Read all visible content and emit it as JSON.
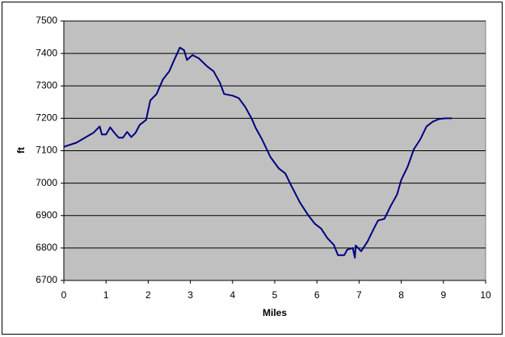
{
  "chart_data": {
    "type": "line",
    "x_label": "Miles",
    "y_label": "ft",
    "x": [
      0,
      0.3,
      0.5,
      0.7,
      0.85,
      0.9,
      1.0,
      1.1,
      1.2,
      1.3,
      1.4,
      1.5,
      1.6,
      1.7,
      1.8,
      1.95,
      2.05,
      2.2,
      2.35,
      2.5,
      2.6,
      2.75,
      2.85,
      2.92,
      3.05,
      3.2,
      3.4,
      3.55,
      3.7,
      3.8,
      4.0,
      4.15,
      4.3,
      4.45,
      4.55,
      4.7,
      4.9,
      5.1,
      5.25,
      5.4,
      5.6,
      5.8,
      5.95,
      6.1,
      6.25,
      6.4,
      6.5,
      6.65,
      6.72,
      6.85,
      6.9,
      6.92,
      7.05,
      7.2,
      7.35,
      7.45,
      7.6,
      7.75,
      7.9,
      8.0,
      8.15,
      8.3,
      8.45,
      8.6,
      8.75,
      8.9,
      9.05,
      9.2
    ],
    "series": [
      {
        "color": "#000080",
        "values": [
          7112,
          7125,
          7140,
          7155,
          7175,
          7150,
          7150,
          7172,
          7155,
          7140,
          7140,
          7158,
          7142,
          7155,
          7180,
          7195,
          7255,
          7275,
          7320,
          7345,
          7375,
          7418,
          7410,
          7380,
          7395,
          7385,
          7360,
          7345,
          7310,
          7275,
          7270,
          7262,
          7235,
          7200,
          7170,
          7135,
          7080,
          7045,
          7030,
          6990,
          6940,
          6900,
          6875,
          6860,
          6830,
          6810,
          6778,
          6778,
          6795,
          6800,
          6770,
          6808,
          6790,
          6820,
          6860,
          6885,
          6890,
          6930,
          6965,
          7010,
          7050,
          7105,
          7135,
          7175,
          7190,
          7198,
          7200,
          7200
        ]
      }
    ],
    "xlim": [
      0,
      10
    ],
    "xticks": [
      0,
      1,
      2,
      3,
      4,
      5,
      6,
      7,
      8,
      9,
      10
    ],
    "ylim": [
      6700,
      7500
    ],
    "yticks": [
      6700,
      6800,
      6900,
      7000,
      7100,
      7200,
      7300,
      7400,
      7500
    ],
    "grid": true,
    "plot_background": "#c0c0c0"
  }
}
